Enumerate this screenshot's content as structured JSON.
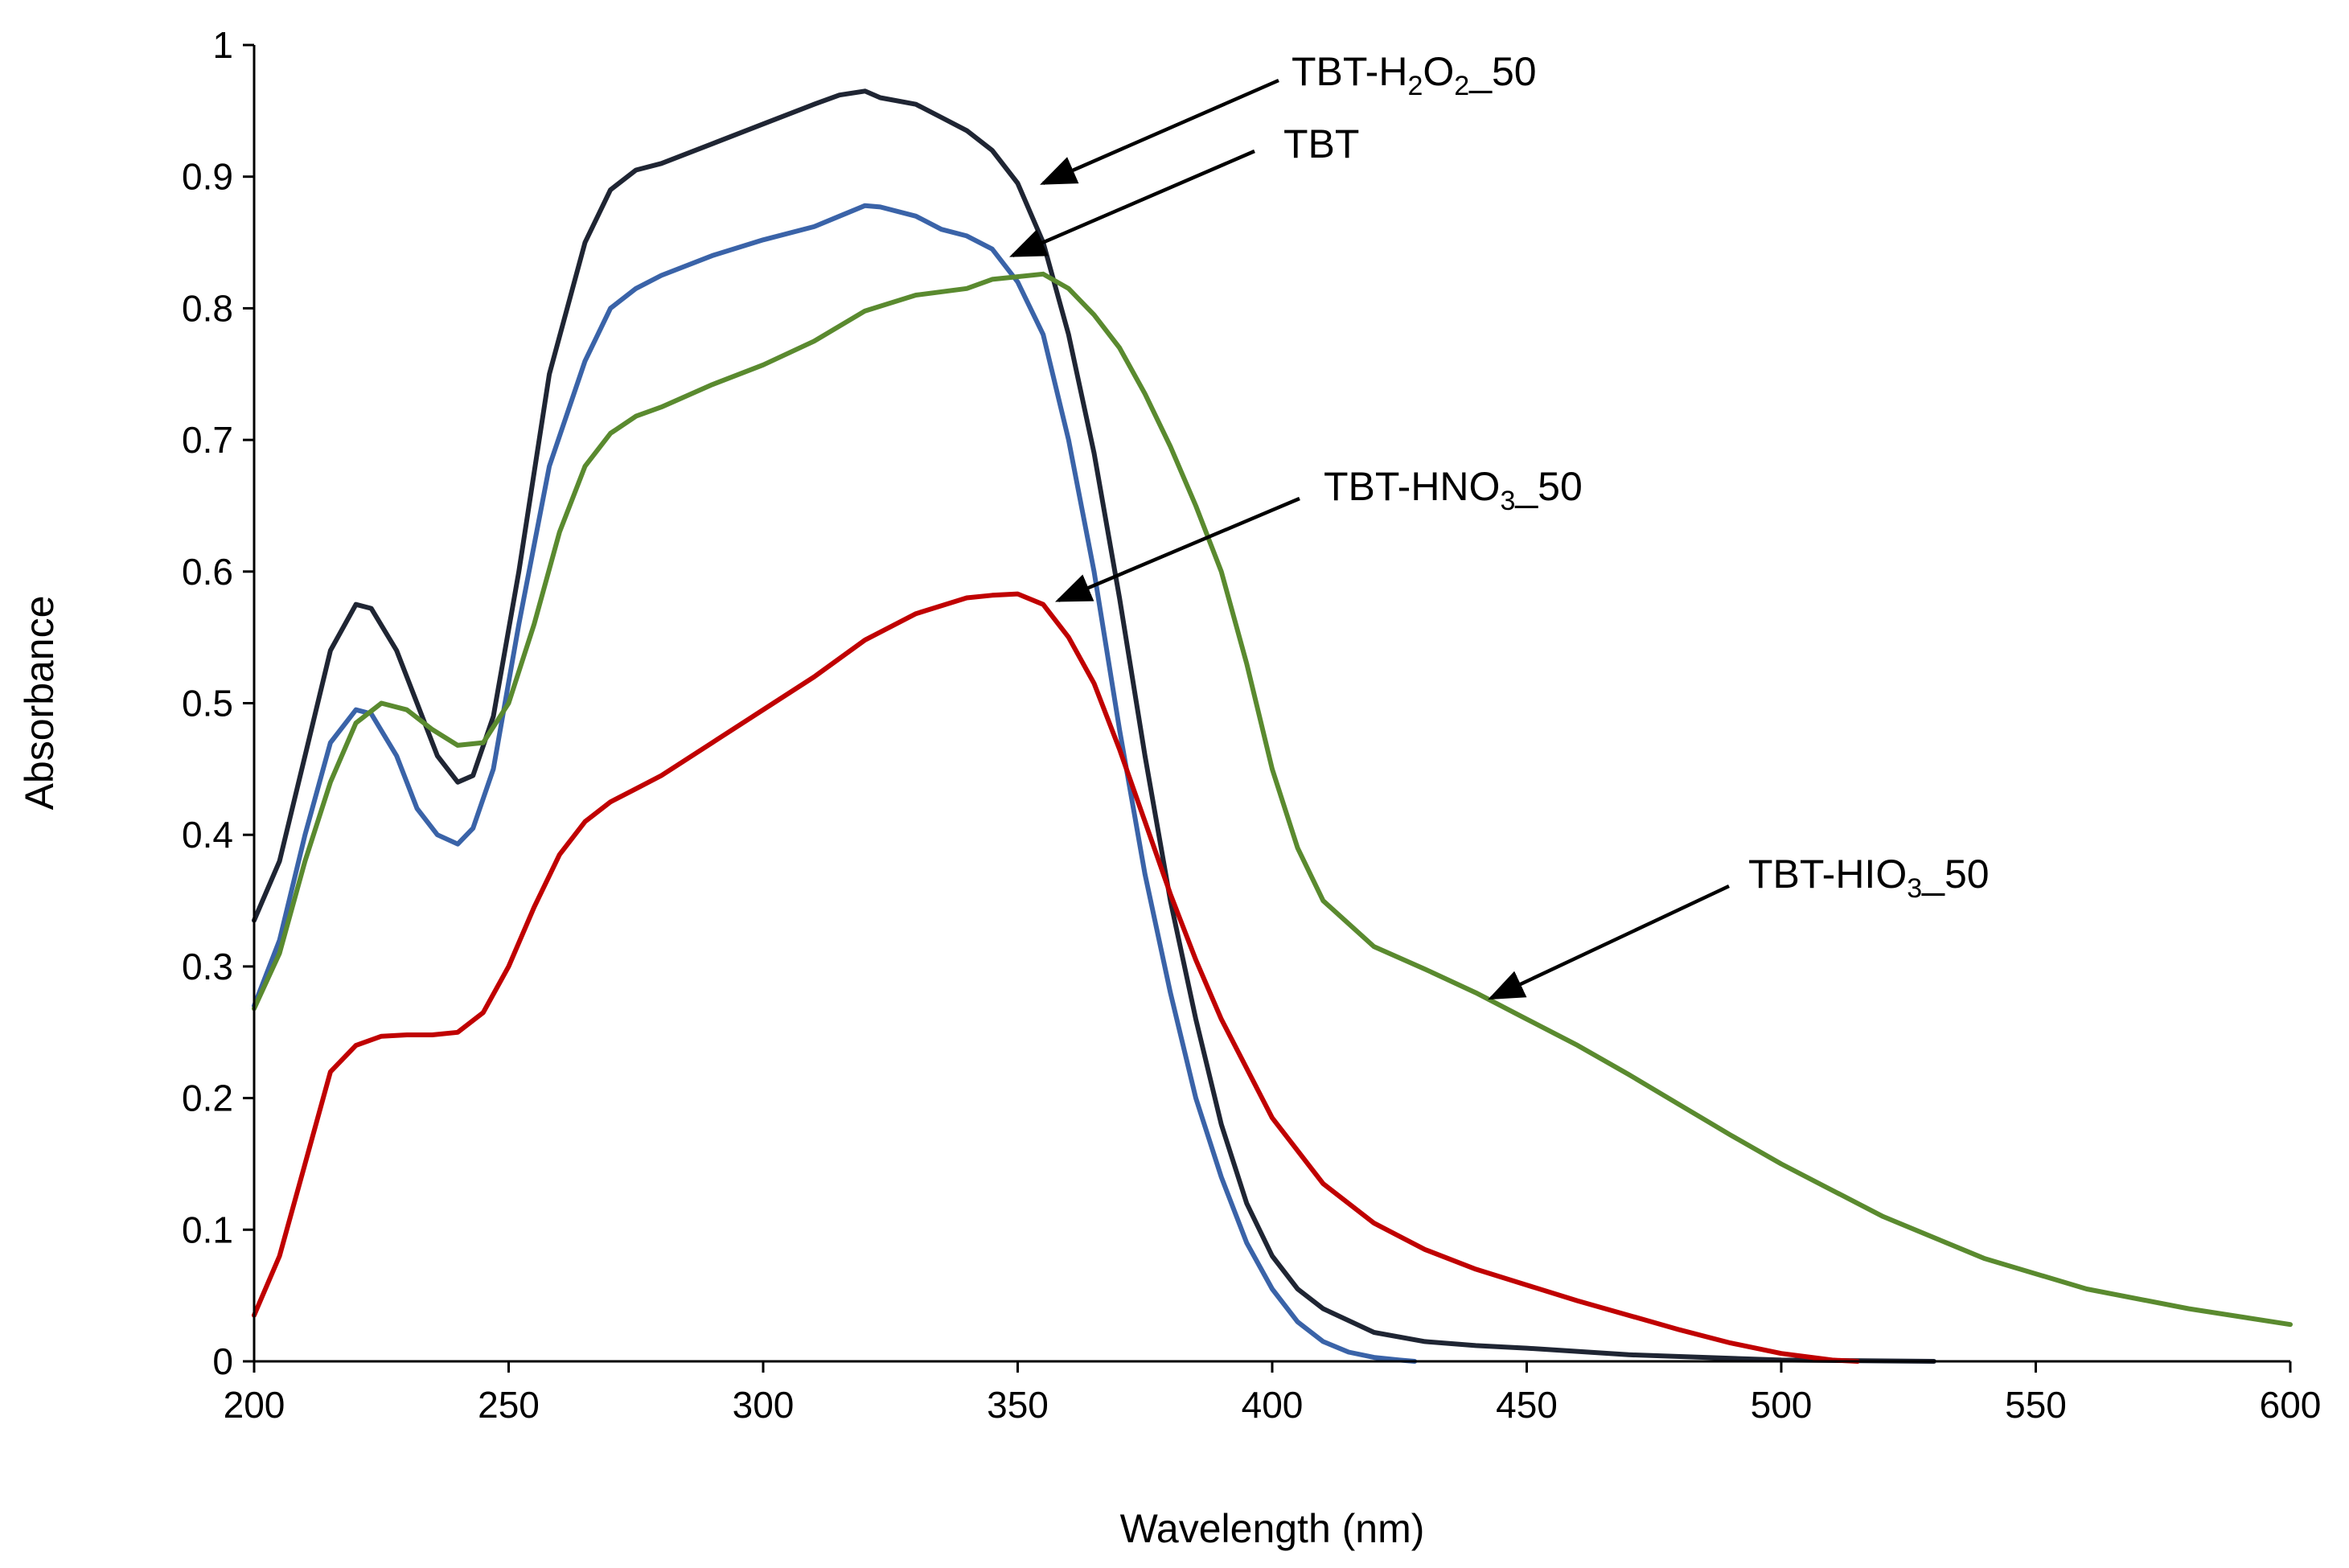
{
  "chart_data": {
    "type": "line",
    "title": "",
    "xlabel": "Wavelength (nm)",
    "ylabel": "Absorbance",
    "xlim": [
      200,
      600
    ],
    "ylim": [
      0,
      1
    ],
    "xticks": [
      200,
      250,
      300,
      350,
      400,
      450,
      500,
      550,
      600
    ],
    "yticks": [
      0,
      0.1,
      0.2,
      0.3,
      0.4,
      0.5,
      0.6,
      0.7,
      0.8,
      0.9,
      1
    ],
    "ytick_labels": [
      "0",
      "0.1",
      "0.2",
      "0.3",
      "0.4",
      "0.5",
      "0.6",
      "0.7",
      "0.8",
      "0.9",
      "1"
    ],
    "grid": false,
    "legend": "none",
    "series": [
      {
        "name": "TBT-H2O2_50",
        "color": "#1f2533",
        "x": [
          200,
          205,
          210,
          215,
          220,
          223,
          228,
          232,
          236,
          240,
          243,
          247,
          252,
          258,
          265,
          270,
          275,
          280,
          290,
          300,
          310,
          315,
          320,
          323,
          330,
          335,
          340,
          345,
          350,
          355,
          360,
          365,
          370,
          375,
          380,
          385,
          390,
          395,
          400,
          405,
          410,
          420,
          430,
          440,
          450,
          470,
          500,
          530
        ],
        "y": [
          0.335,
          0.38,
          0.46,
          0.54,
          0.575,
          0.572,
          0.54,
          0.5,
          0.46,
          0.44,
          0.445,
          0.49,
          0.6,
          0.75,
          0.85,
          0.89,
          0.905,
          0.91,
          0.925,
          0.94,
          0.955,
          0.962,
          0.965,
          0.96,
          0.955,
          0.945,
          0.935,
          0.92,
          0.895,
          0.85,
          0.78,
          0.69,
          0.58,
          0.46,
          0.35,
          0.26,
          0.18,
          0.12,
          0.08,
          0.055,
          0.04,
          0.022,
          0.015,
          0.012,
          0.01,
          0.005,
          0.001,
          0.0
        ]
      },
      {
        "name": "TBT",
        "color": "#3a63a8",
        "x": [
          200,
          205,
          210,
          215,
          220,
          223,
          228,
          232,
          236,
          240,
          243,
          247,
          252,
          258,
          265,
          270,
          275,
          280,
          290,
          300,
          310,
          315,
          320,
          323,
          330,
          335,
          340,
          345,
          350,
          355,
          360,
          365,
          370,
          375,
          380,
          385,
          390,
          395,
          400,
          405,
          410,
          415,
          420,
          425,
          428
        ],
        "y": [
          0.27,
          0.32,
          0.4,
          0.47,
          0.495,
          0.492,
          0.46,
          0.42,
          0.4,
          0.393,
          0.405,
          0.45,
          0.56,
          0.68,
          0.76,
          0.8,
          0.815,
          0.825,
          0.84,
          0.852,
          0.862,
          0.87,
          0.878,
          0.877,
          0.87,
          0.86,
          0.855,
          0.845,
          0.82,
          0.78,
          0.7,
          0.6,
          0.48,
          0.37,
          0.28,
          0.2,
          0.14,
          0.09,
          0.055,
          0.03,
          0.015,
          0.007,
          0.003,
          0.001,
          0.0
        ]
      },
      {
        "name": "TBT-HIO3_50",
        "color": "#5a8a2f",
        "x": [
          200,
          205,
          210,
          215,
          220,
          225,
          230,
          235,
          240,
          245,
          250,
          255,
          260,
          265,
          270,
          275,
          280,
          290,
          300,
          310,
          320,
          330,
          340,
          345,
          350,
          355,
          360,
          365,
          370,
          375,
          380,
          385,
          390,
          395,
          400,
          405,
          410,
          420,
          430,
          440,
          450,
          460,
          470,
          480,
          490,
          500,
          520,
          540,
          560,
          580,
          600
        ],
        "y": [
          0.268,
          0.31,
          0.38,
          0.44,
          0.485,
          0.5,
          0.495,
          0.48,
          0.468,
          0.47,
          0.5,
          0.56,
          0.63,
          0.68,
          0.705,
          0.718,
          0.725,
          0.742,
          0.757,
          0.775,
          0.798,
          0.81,
          0.815,
          0.822,
          0.824,
          0.826,
          0.815,
          0.795,
          0.77,
          0.735,
          0.695,
          0.65,
          0.6,
          0.53,
          0.45,
          0.39,
          0.35,
          0.315,
          0.298,
          0.28,
          0.26,
          0.24,
          0.218,
          0.195,
          0.172,
          0.15,
          0.11,
          0.078,
          0.055,
          0.04,
          0.028
        ]
      },
      {
        "name": "TBT-HNO3_50",
        "color": "#c00000",
        "x": [
          200,
          205,
          210,
          215,
          220,
          225,
          230,
          235,
          240,
          245,
          250,
          255,
          260,
          265,
          270,
          275,
          280,
          290,
          300,
          310,
          320,
          330,
          340,
          345,
          350,
          355,
          360,
          365,
          370,
          375,
          380,
          385,
          390,
          400,
          410,
          420,
          430,
          440,
          450,
          460,
          470,
          480,
          490,
          500,
          510,
          515
        ],
        "y": [
          0.035,
          0.08,
          0.15,
          0.22,
          0.24,
          0.247,
          0.248,
          0.248,
          0.25,
          0.265,
          0.3,
          0.345,
          0.385,
          0.41,
          0.425,
          0.435,
          0.445,
          0.47,
          0.495,
          0.52,
          0.548,
          0.568,
          0.58,
          0.582,
          0.583,
          0.575,
          0.55,
          0.515,
          0.465,
          0.41,
          0.355,
          0.305,
          0.26,
          0.185,
          0.135,
          0.105,
          0.085,
          0.07,
          0.058,
          0.046,
          0.035,
          0.024,
          0.014,
          0.006,
          0.001,
          0.0
        ]
      }
    ],
    "annotations": [
      {
        "text": "TBT-H",
        "sub1": "2",
        "mid": "O",
        "sub2": "2",
        "tail": "_50",
        "target": [
          355,
          0.895
        ]
      },
      {
        "text": "TBT",
        "target": [
          349,
          0.84
        ]
      },
      {
        "text": "TBT-HNO",
        "sub1": "3",
        "tail": "_50",
        "target": [
          358,
          0.578
        ]
      },
      {
        "text": "TBT-HIO",
        "sub1": "3",
        "tail": "_50",
        "target": [
          443,
          0.276
        ]
      }
    ]
  }
}
